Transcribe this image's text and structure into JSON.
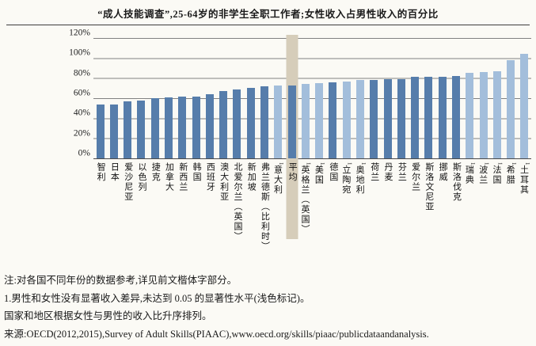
{
  "chart_data": {
    "type": "bar",
    "title": "“成人技能调查”,25-64岁的非学生全职工作者;女性收入占男性收入的百分比",
    "xlabel": "",
    "ylabel": "",
    "ylim": [
      0,
      120
    ],
    "grid": "horizontal",
    "legend": "none",
    "yticks": [
      "120%",
      "100%",
      "80%",
      "60%",
      "40%",
      "20%",
      "0%"
    ],
    "categories": [
      "智利",
      "日本",
      "爱沙尼亚",
      "以色列",
      "捷克",
      "加拿大",
      "新西兰",
      "韩国",
      "西班牙",
      "澳大利亚",
      "北爱尔兰（英国）",
      "新加坡",
      "弗兰德斯（比利时）",
      "意大利",
      "平均",
      "英格兰（英国）",
      "美国",
      "德国",
      "立陶宛",
      "奥地利",
      "荷兰",
      "丹麦",
      "芬兰",
      "爱尔兰",
      "斯洛文尼亚",
      "挪威",
      "斯洛伐克",
      "瑞典",
      "波兰",
      "法国",
      "希腊",
      "土耳其"
    ],
    "values": [
      54,
      54,
      57,
      58,
      60,
      61,
      62,
      62,
      64,
      67,
      69,
      70,
      72,
      73,
      73,
      74,
      75,
      76,
      77,
      78,
      78,
      79,
      79,
      81,
      81,
      81,
      82,
      85,
      86,
      87,
      98,
      104
    ],
    "significant": [
      true,
      true,
      true,
      true,
      true,
      true,
      true,
      true,
      true,
      true,
      true,
      true,
      true,
      false,
      true,
      false,
      false,
      true,
      false,
      false,
      true,
      true,
      true,
      true,
      true,
      true,
      true,
      false,
      false,
      false,
      false,
      false
    ],
    "average_index": 14,
    "footnote_marker": "1",
    "colors": {
      "bar": "#567dab",
      "bar_not_significant": "#a3bedb",
      "average_band": "#d6cdba",
      "gridline": "#818181"
    }
  },
  "notes": [
    "注:对各国不同年份的数据参考,详见前文楷体字部分。",
    "1.男性和女性没有显著收入差异,未达到 0.05 的显著性水平(浅色标记)。",
    "国家和地区根据女性与男性的收入比升序排列。",
    "来源:OECD(2012,2015),Survey of Adult Skills(PIAAC),www.oecd.org/skills/piaac/publicdataandanalysis."
  ]
}
